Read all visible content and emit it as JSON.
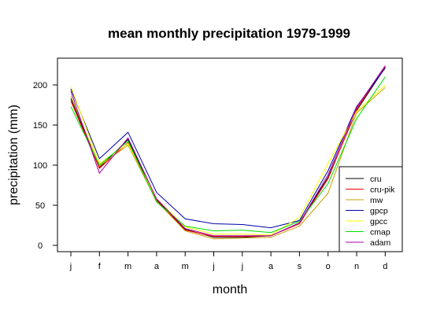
{
  "chart_data": {
    "type": "line",
    "title": "mean monthly precipitation 1979-1999",
    "xlabel": "month",
    "ylabel": "precipitation (mm)",
    "categories": [
      "j",
      "f",
      "m",
      "a",
      "m",
      "j",
      "j",
      "a",
      "s",
      "o",
      "n",
      "d"
    ],
    "ylim": [
      -8,
      232
    ],
    "yticks": [
      0,
      50,
      100,
      150,
      200
    ],
    "grid": false,
    "legend_position": "bottom-right",
    "series": [
      {
        "name": "cru",
        "color": "#000000",
        "values": [
          183,
          97,
          132,
          57,
          20,
          10,
          10,
          12,
          28,
          85,
          168,
          222
        ]
      },
      {
        "name": "cru-pik",
        "color": "#ff0000",
        "values": [
          180,
          96,
          128,
          56,
          19,
          11,
          11,
          12,
          27,
          83,
          170,
          223
        ]
      },
      {
        "name": "mw",
        "color": "#c8a000",
        "values": [
          186,
          99,
          125,
          55,
          18,
          8,
          9,
          10,
          24,
          65,
          165,
          197
        ]
      },
      {
        "name": "gpcp",
        "color": "#0000aa",
        "values": [
          195,
          108,
          141,
          66,
          33,
          27,
          26,
          22,
          31,
          93,
          173,
          221
        ]
      },
      {
        "name": "gpcc",
        "color": "#ffff00",
        "values": [
          198,
          102,
          127,
          58,
          23,
          14,
          14,
          13,
          35,
          102,
          167,
          200
        ]
      },
      {
        "name": "cmap",
        "color": "#00dd00",
        "values": [
          173,
          100,
          130,
          54,
          24,
          18,
          19,
          16,
          30,
          77,
          158,
          210
        ]
      },
      {
        "name": "adam",
        "color": "#aa00aa",
        "values": [
          192,
          90,
          134,
          58,
          21,
          12,
          12,
          12,
          28,
          88,
          172,
          224
        ]
      }
    ]
  }
}
